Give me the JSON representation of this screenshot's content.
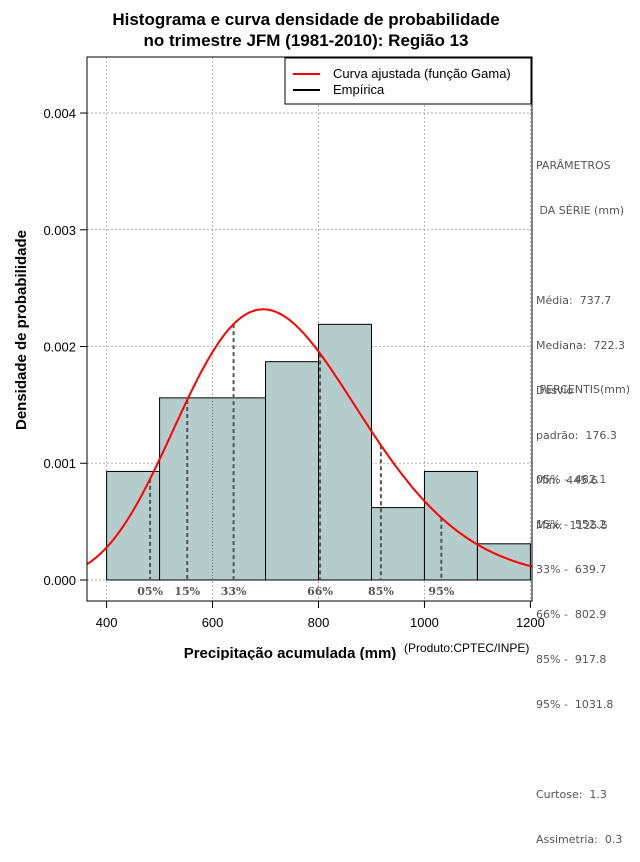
{
  "chart_data": {
    "type": "bar",
    "title": [
      "Histograma e curva densidade de probabilidade",
      "no trimestre JFM (1981-2010): Região 13"
    ],
    "xlabel": "Precipitação acumulada (mm)",
    "ylabel": "Densidade de probabilidade",
    "credit": "(Produto:CPTEC/INPE)",
    "xlim": [
      363,
      1203
    ],
    "ylim": [
      -0.00018,
      0.00448
    ],
    "x_ticks": [
      400,
      600,
      800,
      1000,
      1200
    ],
    "y_ticks": [
      0.0,
      0.001,
      0.002,
      0.003,
      0.004
    ],
    "y_tick_labels": [
      "0.000",
      "0.001",
      "0.002",
      "0.003",
      "0.004"
    ],
    "grid": true,
    "legend": {
      "position": "top-right",
      "entries": [
        {
          "label": "Curva ajustada (função Gama)",
          "color": "#ff0000"
        },
        {
          "label": "Empírica",
          "color": "#000000"
        }
      ]
    },
    "bins": [
      {
        "start": 400,
        "end": 500,
        "density": 0.00093
      },
      {
        "start": 500,
        "end": 700,
        "density": 0.00156
      },
      {
        "start": 700,
        "end": 800,
        "density": 0.00187
      },
      {
        "start": 800,
        "end": 900,
        "density": 0.00219
      },
      {
        "start": 900,
        "end": 1000,
        "density": 0.00062
      },
      {
        "start": 1000,
        "end": 1100,
        "density": 0.00093
      },
      {
        "start": 1100,
        "end": 1200,
        "density": 0.00031
      }
    ],
    "bin_dividers": [
      600
    ],
    "gamma_fit": {
      "mean": 737.7,
      "sd": 176.3
    },
    "percentiles": [
      {
        "label": "05%",
        "value": 482.1
      },
      {
        "label": "15%",
        "value": 552.2
      },
      {
        "label": "33%",
        "value": 639.7
      },
      {
        "label": "66%",
        "value": 802.9
      },
      {
        "label": "85%",
        "value": 917.8
      },
      {
        "label": "95%",
        "value": 1031.8
      }
    ],
    "colors": {
      "bar_fill": "#b5cccc",
      "curve": "#ff0000",
      "grid": "#b0b0b0",
      "percentile_line": "#555555"
    }
  },
  "stats": {
    "header": [
      "PARÂMETROS",
      " DA SÉRIE (mm)"
    ],
    "lines": [
      "Média:  737.7",
      "Mediana:  722.3",
      "Desvio",
      "padrão:  176.3",
      "Mín:  445.6",
      "Máx:  1125.5"
    ]
  },
  "percentis_panel": {
    "header": " PERCENTIS(mm)",
    "lines": [
      "05% -  482.1",
      "15% -  552.2",
      "33% -  639.7",
      "66% -  802.9",
      "85% -  917.8",
      "95% -  1031.8"
    ],
    "extra": [
      "Curtose:  1.3",
      "Assimetria:  0.3"
    ]
  }
}
